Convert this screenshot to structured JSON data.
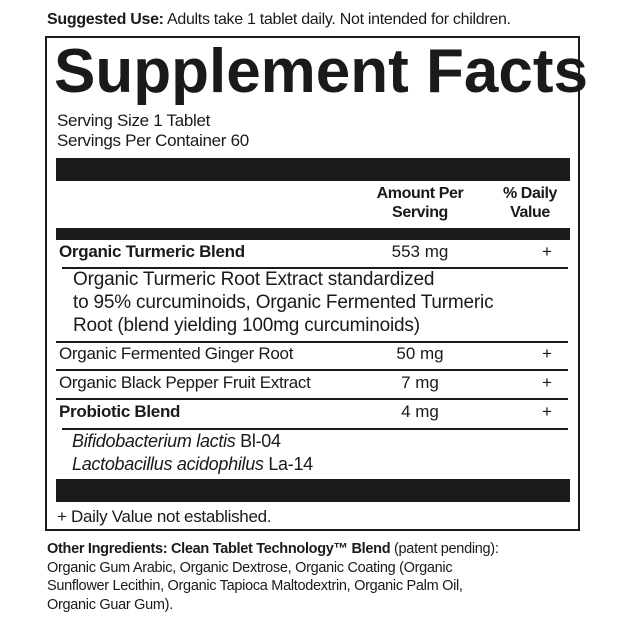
{
  "suggested_use": {
    "label": "Suggested Use:",
    "text": " Adults take 1 tablet daily. Not intended for children."
  },
  "title": "Supplement Facts",
  "serving_size": "Serving Size 1 Tablet",
  "servings_per_container": "Servings Per Container 60",
  "headers": {
    "amount_line1": "Amount Per",
    "amount_line2": "Serving",
    "dv_line1": "% Daily",
    "dv_line2": "Value"
  },
  "rows": [
    {
      "name": "Organic Turmeric Blend",
      "amount": "553 mg",
      "dv": "+"
    },
    {
      "name": "Organic Fermented Ginger Root",
      "amount": "50 mg",
      "dv": "+"
    },
    {
      "name": "Organic Black Pepper Fruit Extract",
      "amount": "7 mg",
      "dv": "+"
    },
    {
      "name": "Probiotic Blend",
      "amount": "4 mg",
      "dv": "+"
    }
  ],
  "turmeric_detail": [
    "Organic Turmeric Root Extract standardized",
    "to 95% curcuminoids, Organic Fermented Turmeric",
    "Root (blend yielding 100mg curcuminoids)"
  ],
  "probiotics": [
    {
      "species": "Bifidobacterium lactis",
      "strain": " Bl-04"
    },
    {
      "species": "Lactobacillus acidophilus",
      "strain": " La-14"
    }
  ],
  "footnote": "+ Daily Value not established.",
  "other_ingredients": {
    "label": "Other Ingredients: Clean Tablet Technology™ Blend",
    "lines": [
      " (patent pending):",
      "Organic Gum Arabic, Organic Dextrose, Organic Coating (Organic",
      "Sunflower Lecithin, Organic Tapioca Maltodextrin, Organic Palm Oil,",
      "Organic Guar Gum)."
    ]
  }
}
